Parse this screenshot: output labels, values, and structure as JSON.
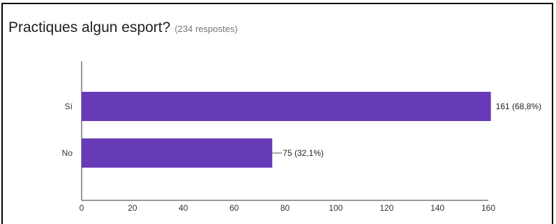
{
  "header": {
    "title": "Practiques algun esport?",
    "subtitle": "(234 respostes)"
  },
  "chart_data": {
    "type": "bar",
    "orientation": "horizontal",
    "title": "Practiques algun esport?",
    "subtitle": "(234 respostes)",
    "categories": [
      "Sí",
      "No"
    ],
    "values": [
      161,
      75
    ],
    "data_labels": [
      "161 (68,8%)",
      "75 (32,1%)"
    ],
    "xlim": [
      0,
      160
    ],
    "xticks": [
      0,
      20,
      40,
      60,
      80,
      100,
      120,
      140,
      160
    ],
    "grid": false,
    "bar_color": "#673ab7"
  }
}
